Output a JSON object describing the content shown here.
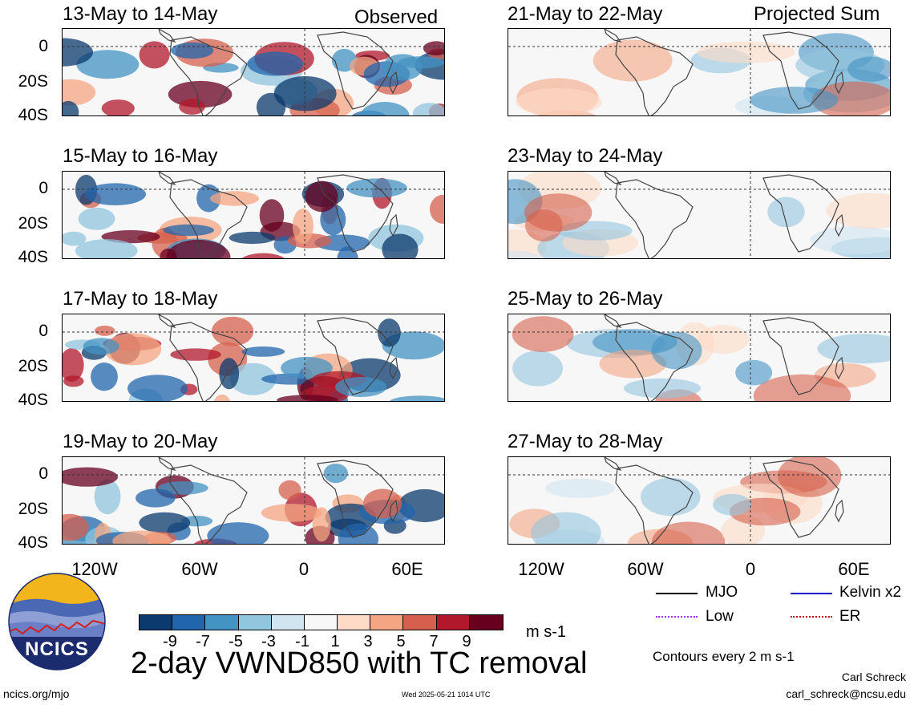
{
  "header": {
    "observed_label": "Observed",
    "projected_label": "Projected Sum"
  },
  "observed_panels": [
    {
      "title": "13-May to 14-May"
    },
    {
      "title": "15-May to 16-May"
    },
    {
      "title": "17-May to 18-May"
    },
    {
      "title": "19-May to 20-May"
    }
  ],
  "projected_panels": [
    {
      "title": "21-May to 22-May"
    },
    {
      "title": "23-May to 24-May"
    },
    {
      "title": "25-May to 26-May"
    },
    {
      "title": "27-May to 28-May"
    }
  ],
  "axes": {
    "y_ticks": [
      "0",
      "20S",
      "40S"
    ],
    "x_ticks": [
      "120W",
      "60W",
      "0",
      "60E"
    ]
  },
  "colorbar": {
    "labels": [
      "-9",
      "-7",
      "-5",
      "-3",
      "-1",
      "1",
      "3",
      "5",
      "7",
      "9"
    ],
    "colors": [
      "#0b3a6e",
      "#2166ac",
      "#4393c3",
      "#92c5de",
      "#d1e5f0",
      "#f7f7f7",
      "#fddbc7",
      "#f4a582",
      "#d6604d",
      "#b2182b",
      "#67001f"
    ],
    "units": "m s-1"
  },
  "main_title": "2-day VWND850 with TC removal",
  "legend": {
    "items": [
      {
        "label": "MJO",
        "color": "#000000"
      },
      {
        "label": "Kelvin x2",
        "color": "#0000cc"
      },
      {
        "label": "Low",
        "color": "#9b30ff"
      },
      {
        "label": "ER",
        "color": "#cc0000"
      }
    ],
    "contours_note": "Contours every 2 m s-1"
  },
  "logo": {
    "text": "NCICS"
  },
  "footer": {
    "url": "ncics.org/mjo",
    "timestamp": "Wed 2025-05-21 1014 UTC",
    "author": "Carl Schreck",
    "email": "carl_schreck@ncsu.edu"
  }
}
